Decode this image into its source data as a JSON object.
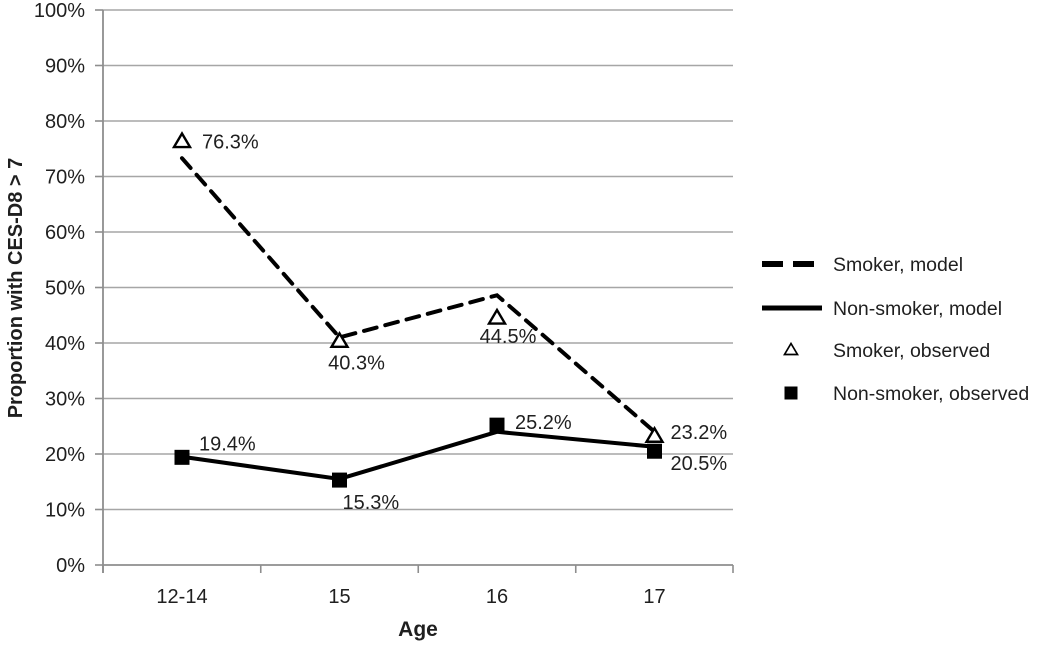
{
  "chart_data": {
    "type": "line",
    "title": "",
    "xlabel": "Age",
    "ylabel": "Proportion with CES-D8 > 7",
    "categories": [
      "12-14",
      "15",
      "16",
      "17"
    ],
    "ylim": [
      0,
      100
    ],
    "y_tick_step": 10,
    "y_tick_labels": [
      "0%",
      "10%",
      "20%",
      "30%",
      "40%",
      "50%",
      "60%",
      "70%",
      "80%",
      "90%",
      "100%"
    ],
    "grid": true,
    "legend_position": "right-middle",
    "series": [
      {
        "name": "Smoker, model",
        "kind": "line",
        "dash": true,
        "marker": "none",
        "values": [
          73.3,
          41.0,
          48.6,
          24.0
        ]
      },
      {
        "name": "Non-smoker, model",
        "kind": "line",
        "dash": false,
        "marker": "none",
        "values": [
          19.5,
          15.5,
          24.0,
          21.3
        ]
      },
      {
        "name": "Smoker, observed",
        "kind": "points",
        "marker": "open-triangle",
        "values": [
          76.3,
          40.3,
          44.5,
          23.2
        ],
        "point_labels": [
          "76.3%",
          "40.3%",
          "44.5%",
          "23.2%"
        ]
      },
      {
        "name": "Non-smoker, observed",
        "kind": "points",
        "marker": "filled-square",
        "values": [
          19.4,
          15.3,
          25.2,
          20.5
        ],
        "point_labels": [
          "19.4%",
          "15.3%",
          "25.2%",
          "20.5%"
        ]
      }
    ],
    "colors": {
      "series": "#000000",
      "grid": "#a6a6a6",
      "axis": "#8e8e8e",
      "text": "#1f1f1f"
    }
  }
}
